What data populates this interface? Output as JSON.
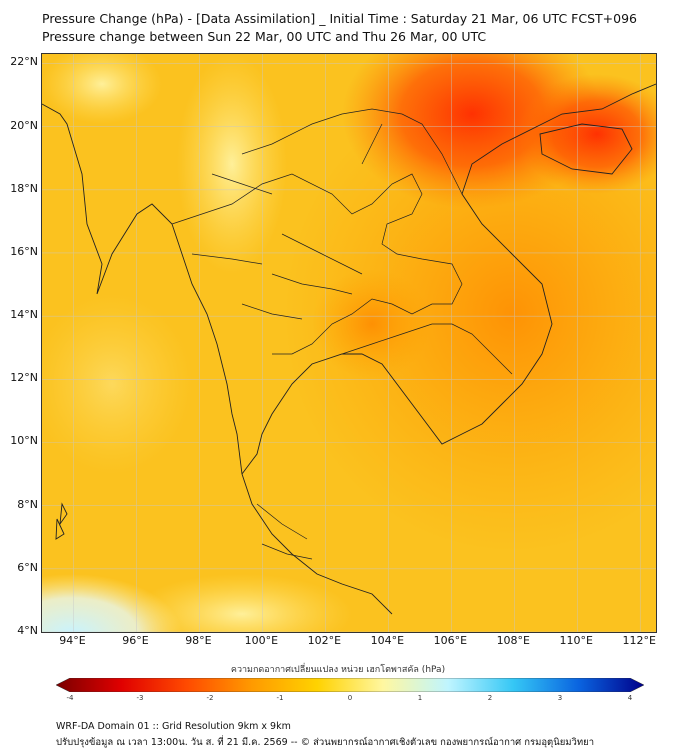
{
  "title": {
    "line1": "Pressure Change (hPa) - [Data Assimilation] _ Initial Time : Saturday 21 Mar, 06 UTC FCST+096",
    "line2": "Pressure change between Sun 22 Mar, 00 UTC and Thu 26 Mar, 00 UTC"
  },
  "map": {
    "lat_labels": [
      "22°N",
      "20°N",
      "18°N",
      "16°N",
      "14°N",
      "12°N",
      "10°N",
      "8°N",
      "6°N",
      "4°N"
    ],
    "lon_labels": [
      "94°E",
      "96°E",
      "98°E",
      "100°E",
      "102°E",
      "104°E",
      "106°E",
      "108°E",
      "110°E",
      "112°E"
    ],
    "lat_range": [
      4,
      22.3
    ],
    "lon_range": [
      93,
      112.5
    ],
    "background_color": "#fbc21f"
  },
  "legend": {
    "title": "ความกดอากาศเปลี่ยนแปลง หน่วย เฮกโตพาสคัล (hPa)",
    "ticks": [
      "-4",
      "-3",
      "-2",
      "-1",
      "0",
      "1",
      "2",
      "3",
      "4"
    ],
    "range": [
      -4,
      4
    ],
    "colors": [
      "#7a0000",
      "#e00000",
      "#ff4a00",
      "#ff9a00",
      "#ffd200",
      "#fff7a0",
      "#bff5ff",
      "#35c7f5",
      "#0a64e0",
      "#00008a"
    ]
  },
  "footer": {
    "line1": "WRF-DA Domain 01 :: Grid Resolution 9km x 9km",
    "line2": "ปรับปรุงข้อมูล ณ เวลา 13:00น. วัน ส. ที่ 21 มี.ค. 2569 -- © ส่วนพยากรณ์อากาศเชิงตัวเลข กองพยากรณ์อากาศ กรมอุตุนิยมวิทยา"
  }
}
